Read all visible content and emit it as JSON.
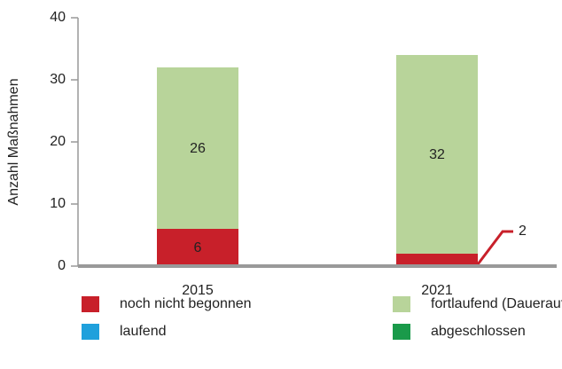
{
  "chart_data": {
    "type": "stacked-bar",
    "y_label": "Anzahl Maßnahmen",
    "categories": [
      "2015",
      "2021"
    ],
    "series": [
      {
        "name": "noch nicht begonnen",
        "color": "#c8202a",
        "values": [
          6,
          2
        ]
      },
      {
        "name": "fortlaufend (Daueraufgabe)",
        "color": "#b8d49a",
        "values": [
          26,
          32
        ]
      },
      {
        "name": "laufend",
        "color": "#1fa0dc",
        "values": [
          0,
          0
        ]
      },
      {
        "name": "abgeschlossen",
        "color": "#1a9a4a",
        "values": [
          0,
          0
        ]
      }
    ],
    "ylim": [
      0,
      40
    ],
    "yticks": [
      0,
      10,
      20,
      30,
      40
    ],
    "grid": false
  }
}
